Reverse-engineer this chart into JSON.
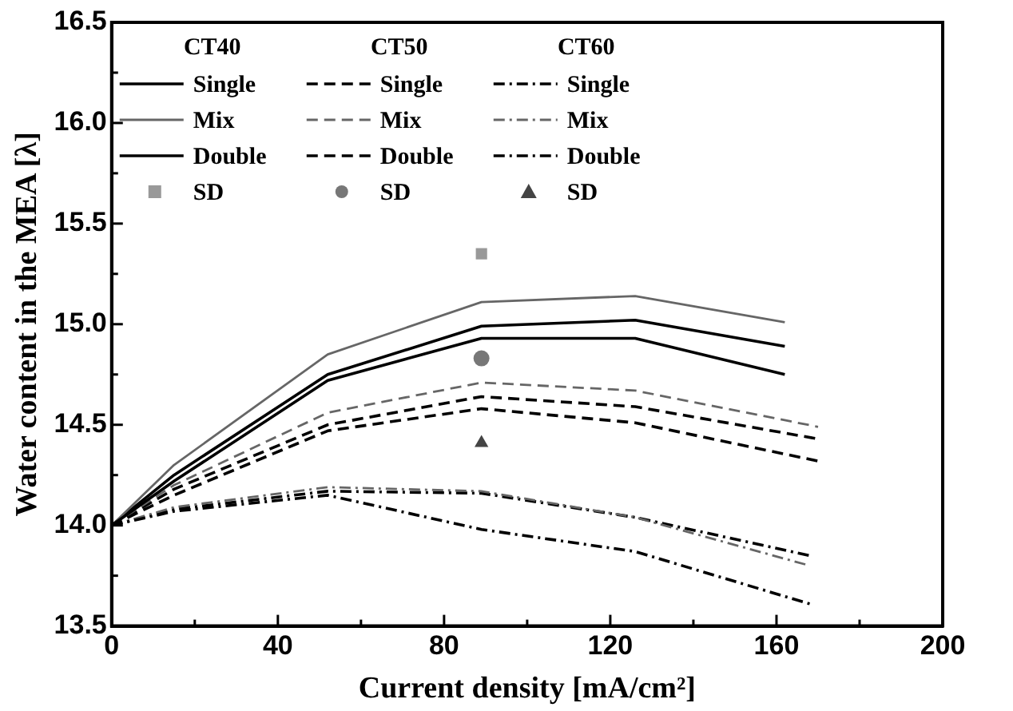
{
  "chart_data": {
    "type": "line",
    "xlabel": "Current density [mA/cm²]",
    "ylabel": "Water content in the MEA [λ]",
    "xlim": [
      0,
      200
    ],
    "xticks": [
      0,
      {
        "value": 20,
        "label": null
      },
      40,
      {
        "value": 60,
        "label": null
      },
      80,
      {
        "value": 100,
        "label": null
      },
      120,
      {
        "value": 140,
        "label": null
      },
      160,
      {
        "value": 180,
        "label": null
      },
      200
    ],
    "ylim": [
      13.5,
      16.5
    ],
    "yticks": [
      13.5,
      {
        "value": 13.75,
        "label": null
      },
      {
        "value": 14,
        "label": "14.0"
      },
      {
        "value": 14.25,
        "label": null
      },
      14.5,
      {
        "value": 14.75,
        "label": null
      },
      {
        "value": 15,
        "label": "15.0"
      },
      {
        "value": 15.25,
        "label": null
      },
      15.5,
      {
        "value": 15.75,
        "label": null
      },
      {
        "value": 16,
        "label": "16.0"
      },
      {
        "value": 16.25,
        "label": null
      },
      16.5
    ],
    "grid": false,
    "legend": "top left",
    "marker": "none",
    "annotations": [
      "CT40",
      "CT50",
      "CT60"
    ],
    "series": [
      {
        "name": "Single",
        "color": "#000000",
        "line_style": "solid",
        "x": [
          0,
          15,
          52,
          89,
          126,
          162
        ],
        "values": [
          14.0,
          14.22,
          14.72,
          14.93,
          14.93,
          14.75
        ]
      },
      {
        "name": "Mix",
        "color": "#666666",
        "line_style": "solid",
        "x": [
          0,
          15,
          52,
          89,
          126,
          162
        ],
        "values": [
          14.0,
          14.3,
          14.85,
          15.11,
          15.14,
          15.01
        ]
      },
      {
        "name": "Double",
        "color": "#000000",
        "line_style": "solid",
        "x": [
          0,
          15,
          52,
          89,
          126,
          162
        ],
        "values": [
          14.0,
          14.25,
          14.75,
          14.99,
          15.02,
          14.89
        ]
      },
      {
        "name": "SD",
        "type": "scatter",
        "marker": "square",
        "color": "#999999",
        "x": [
          89
        ],
        "values": [
          15.35
        ]
      },
      {
        "name": "Single",
        "color": "#000000",
        "line_style": "dashed",
        "x": [
          0,
          15,
          52,
          89,
          126,
          170
        ],
        "values": [
          14.0,
          14.15,
          14.47,
          14.58,
          14.51,
          14.32
        ]
      },
      {
        "name": "Mix",
        "color": "#666666",
        "line_style": "dashed",
        "x": [
          0,
          15,
          52,
          89,
          126,
          170
        ],
        "values": [
          14.0,
          14.2,
          14.56,
          14.71,
          14.67,
          14.49
        ]
      },
      {
        "name": "Double",
        "color": "#000000",
        "line_style": "dashed",
        "x": [
          0,
          15,
          52,
          89,
          126,
          170
        ],
        "values": [
          14.0,
          14.18,
          14.5,
          14.64,
          14.59,
          14.43
        ]
      },
      {
        "name": "SD",
        "type": "scatter",
        "marker": "circle",
        "color": "#777777",
        "x": [
          89
        ],
        "values": [
          14.83
        ]
      },
      {
        "name": "Single",
        "color": "#000000",
        "line_style": "dashdot",
        "x": [
          0,
          15,
          52,
          89,
          126,
          168
        ],
        "values": [
          14.0,
          14.07,
          14.15,
          13.98,
          13.87,
          13.61
        ]
      },
      {
        "name": "Mix",
        "color": "#666666",
        "line_style": "dashdot",
        "x": [
          0,
          15,
          52,
          89,
          126,
          168
        ],
        "values": [
          14.0,
          14.09,
          14.19,
          14.17,
          14.04,
          13.8
        ]
      },
      {
        "name": "Double",
        "color": "#000000",
        "line_style": "dashdot",
        "x": [
          0,
          15,
          52,
          89,
          126,
          168
        ],
        "values": [
          14.0,
          14.08,
          14.17,
          14.16,
          14.04,
          13.85
        ]
      },
      {
        "name": "SD",
        "type": "scatter",
        "marker": "triangle",
        "color": "#444444",
        "x": [
          89
        ],
        "values": [
          14.41
        ]
      }
    ]
  }
}
